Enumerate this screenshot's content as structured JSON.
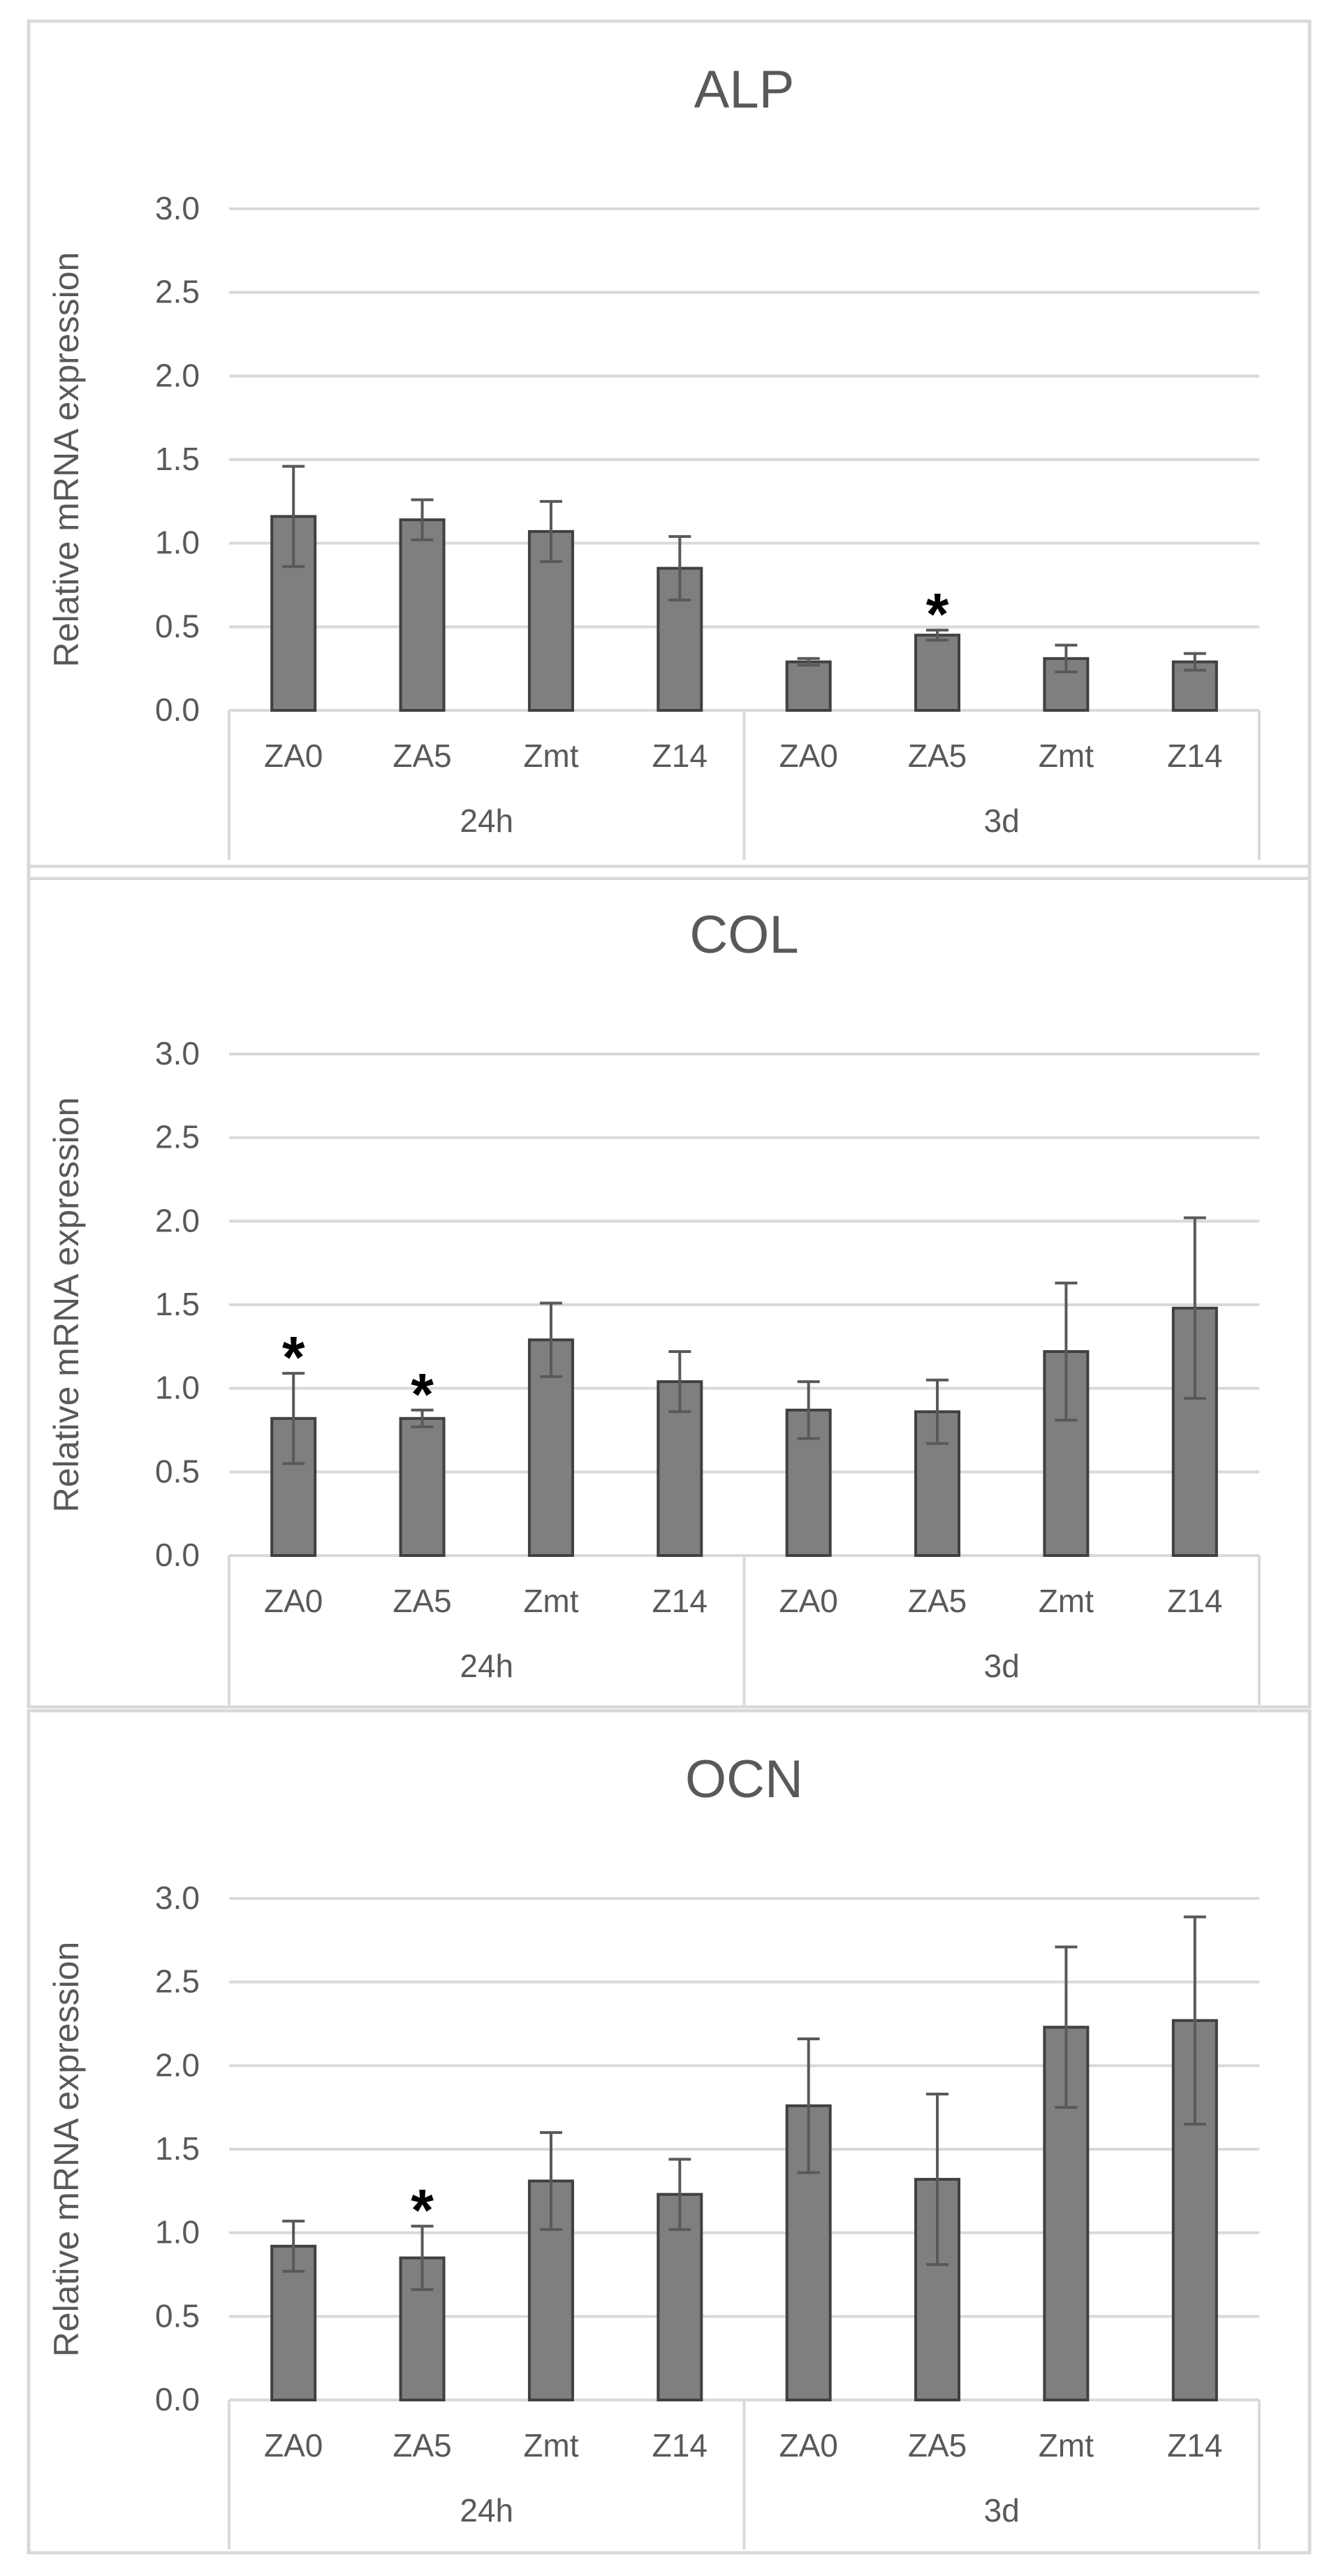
{
  "chart_data": [
    {
      "type": "bar",
      "title": "ALP",
      "ylabel": "Relative mRNA expression",
      "ylim": [
        0,
        3.0
      ],
      "yticks": [
        "0.0",
        "0.5",
        "1.0",
        "1.5",
        "2.0",
        "2.5",
        "3.0"
      ],
      "groups": [
        "24h",
        "3d"
      ],
      "categories": [
        "ZA0",
        "ZA5",
        "Zmt",
        "Z14",
        "ZA0",
        "ZA5",
        "Zmt",
        "Z14"
      ],
      "values": [
        1.16,
        1.14,
        1.07,
        0.85,
        0.29,
        0.45,
        0.31,
        0.29
      ],
      "errors": [
        0.3,
        0.12,
        0.18,
        0.19,
        0.02,
        0.03,
        0.08,
        0.05
      ],
      "significant": [
        false,
        false,
        false,
        false,
        false,
        true,
        false,
        false
      ],
      "marker": "*",
      "grid": true,
      "bar_color": "#7f7f7f"
    },
    {
      "type": "bar",
      "title": "COL",
      "ylabel": "Relative mRNA expression",
      "ylim": [
        0,
        3.0
      ],
      "yticks": [
        "0.0",
        "0.5",
        "1.0",
        "1.5",
        "2.0",
        "2.5",
        "3.0"
      ],
      "groups": [
        "24h",
        "3d"
      ],
      "categories": [
        "ZA0",
        "ZA5",
        "Zmt",
        "Z14",
        "ZA0",
        "ZA5",
        "Zmt",
        "Z14"
      ],
      "values": [
        0.82,
        0.82,
        1.29,
        1.04,
        0.87,
        0.86,
        1.22,
        1.48
      ],
      "errors": [
        0.27,
        0.05,
        0.22,
        0.18,
        0.17,
        0.19,
        0.41,
        0.54
      ],
      "significant": [
        true,
        true,
        false,
        false,
        false,
        false,
        false,
        false
      ],
      "marker": "*",
      "grid": true,
      "bar_color": "#7f7f7f"
    },
    {
      "type": "bar",
      "title": "OCN",
      "ylabel": "Relative mRNA expression",
      "ylim": [
        0,
        3.0
      ],
      "yticks": [
        "0.0",
        "0.5",
        "1.0",
        "1.5",
        "2.0",
        "2.5",
        "3.0"
      ],
      "groups": [
        "24h",
        "3d"
      ],
      "categories": [
        "ZA0",
        "ZA5",
        "Zmt",
        "Z14",
        "ZA0",
        "ZA5",
        "Zmt",
        "Z14"
      ],
      "values": [
        0.92,
        0.85,
        1.31,
        1.23,
        1.76,
        1.32,
        2.23,
        2.27
      ],
      "errors": [
        0.15,
        0.19,
        0.29,
        0.21,
        0.4,
        0.51,
        0.48,
        0.62
      ],
      "significant": [
        false,
        true,
        false,
        false,
        false,
        false,
        false,
        false
      ],
      "marker": "*",
      "grid": true,
      "bar_color": "#7f7f7f"
    }
  ]
}
